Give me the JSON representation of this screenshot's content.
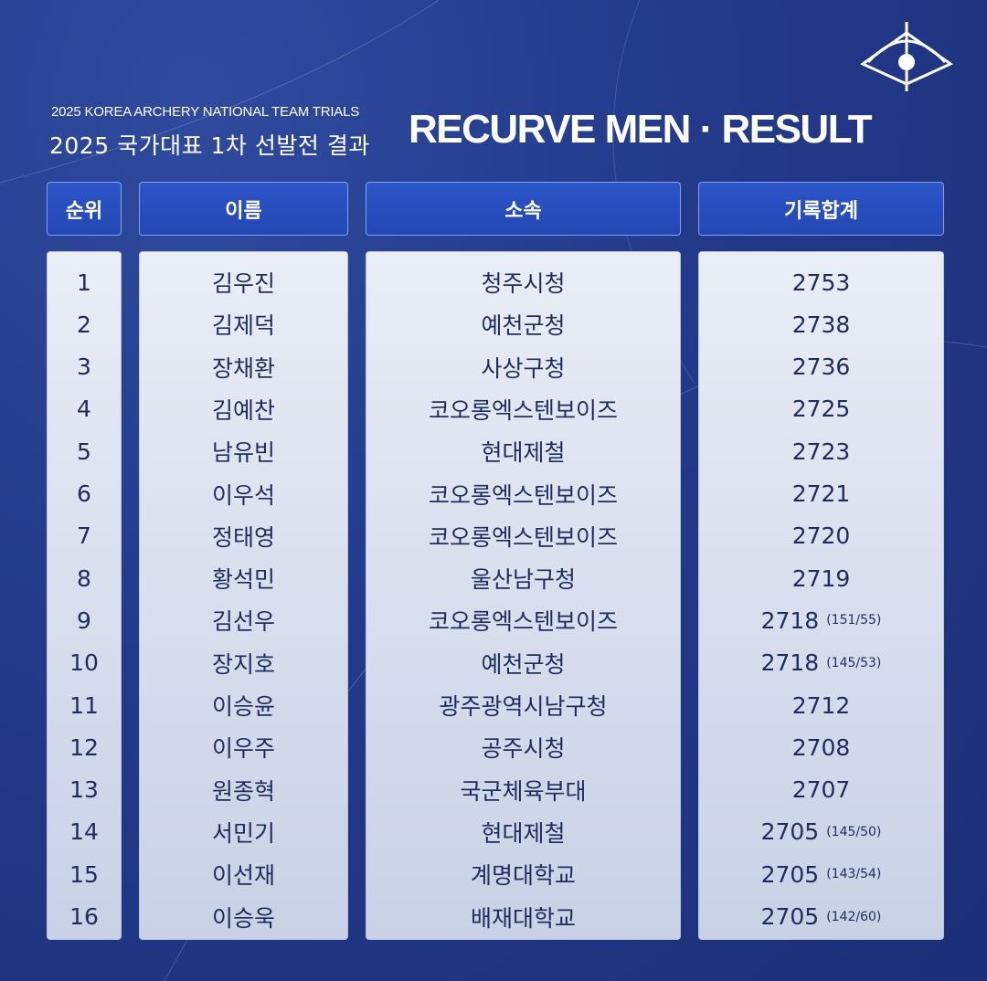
{
  "header": {
    "subtitle_en": "2025 KOREA ARCHERY NATIONAL TEAM TRIALS",
    "subtitle_kr": "2025 국가대표 1차 선발전 결과",
    "title": "RECURVE MEN · RESULT"
  },
  "columns": [
    "순위",
    "이름",
    "소속",
    "기록합계"
  ],
  "rows": [
    {
      "rank": "1",
      "name": "김우진",
      "team": "청주시청",
      "score": "2753",
      "tiebreak": ""
    },
    {
      "rank": "2",
      "name": "김제덕",
      "team": "예천군청",
      "score": "2738",
      "tiebreak": ""
    },
    {
      "rank": "3",
      "name": "장채환",
      "team": "사상구청",
      "score": "2736",
      "tiebreak": ""
    },
    {
      "rank": "4",
      "name": "김예찬",
      "team": "코오롱엑스텐보이즈",
      "score": "2725",
      "tiebreak": ""
    },
    {
      "rank": "5",
      "name": "남유빈",
      "team": "현대제철",
      "score": "2723",
      "tiebreak": ""
    },
    {
      "rank": "6",
      "name": "이우석",
      "team": "코오롱엑스텐보이즈",
      "score": "2721",
      "tiebreak": ""
    },
    {
      "rank": "7",
      "name": "정태영",
      "team": "코오롱엑스텐보이즈",
      "score": "2720",
      "tiebreak": ""
    },
    {
      "rank": "8",
      "name": "황석민",
      "team": "울산남구청",
      "score": "2719",
      "tiebreak": ""
    },
    {
      "rank": "9",
      "name": "김선우",
      "team": "코오롱엑스텐보이즈",
      "score": "2718",
      "tiebreak": "(151/55)"
    },
    {
      "rank": "10",
      "name": "장지호",
      "team": "예천군청",
      "score": "2718",
      "tiebreak": "(145/53)"
    },
    {
      "rank": "11",
      "name": "이승윤",
      "team": "광주광역시남구청",
      "score": "2712",
      "tiebreak": ""
    },
    {
      "rank": "12",
      "name": "이우주",
      "team": "공주시청",
      "score": "2708",
      "tiebreak": ""
    },
    {
      "rank": "13",
      "name": "원종혁",
      "team": "국군체육부대",
      "score": "2707",
      "tiebreak": ""
    },
    {
      "rank": "14",
      "name": "서민기",
      "team": "현대제철",
      "score": "2705",
      "tiebreak": "(145/50)"
    },
    {
      "rank": "15",
      "name": "이선재",
      "team": "계명대학교",
      "score": "2705",
      "tiebreak": "(143/54)"
    },
    {
      "rank": "16",
      "name": "이승욱",
      "team": "배재대학교",
      "score": "2705",
      "tiebreak": "(142/60)"
    }
  ],
  "colors": {
    "background": "#233a8a",
    "header": "#2a4fc0",
    "text": "#1f2d5c"
  }
}
